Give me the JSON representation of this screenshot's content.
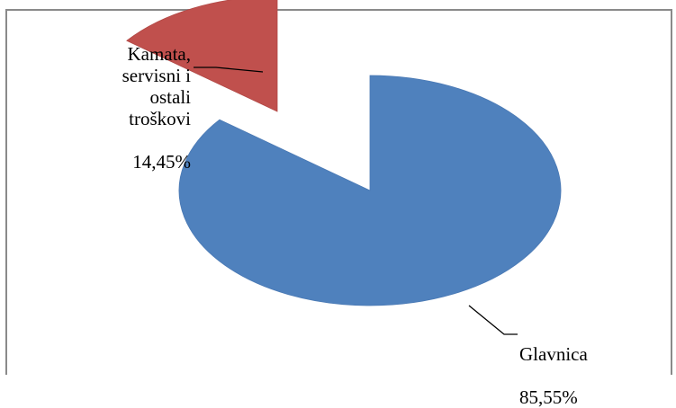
{
  "chart_data": {
    "type": "pie",
    "style": "3d-exploded",
    "title": "",
    "slices": [
      {
        "label": "Glavnica",
        "value": 85.55,
        "value_label": "85,55%",
        "color": "#4f81bd"
      },
      {
        "label": "Kamata,\nservisni i\nostali\ntroškovi",
        "value": 14.45,
        "value_label": "14,45%",
        "color": "#c0504d"
      }
    ],
    "legend": "none"
  }
}
